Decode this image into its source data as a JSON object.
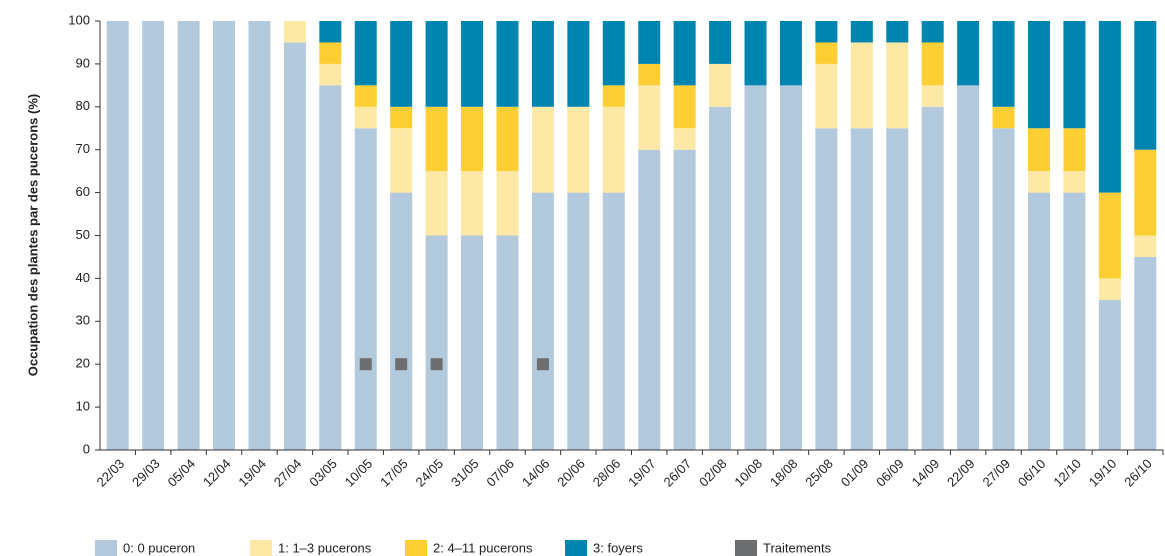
{
  "chart_data": {
    "type": "bar",
    "stacked": true,
    "y_label": "Occupation des plantes par des pucerons (%)",
    "categories": [
      "22/03",
      "29/03",
      "05/04",
      "12/04",
      "19/04",
      "27/04",
      "03/05",
      "10/05",
      "17/05",
      "24/05",
      "31/05",
      "07/06",
      "14/06",
      "20/06",
      "28/06",
      "19/07",
      "26/07",
      "02/08",
      "10/08",
      "18/08",
      "25/08",
      "01/09",
      "06/09",
      "14/09",
      "22/09",
      "27/09",
      "06/10",
      "12/10",
      "19/10",
      "26/10"
    ],
    "series": [
      {
        "name": "0: 0 puceron",
        "color": "#b3c9dc",
        "values": [
          100,
          100,
          100,
          100,
          100,
          95,
          85,
          75,
          60,
          50,
          50,
          50,
          60,
          60,
          60,
          70,
          70,
          80,
          85,
          85,
          75,
          75,
          75,
          80,
          85,
          75,
          60,
          60,
          35,
          45
        ]
      },
      {
        "name": "1: 1–3 pucerons",
        "color": "#fde9a6",
        "values": [
          0,
          0,
          0,
          0,
          0,
          5,
          5,
          5,
          15,
          15,
          15,
          15,
          20,
          20,
          20,
          15,
          5,
          10,
          0,
          0,
          15,
          20,
          20,
          5,
          0,
          0,
          5,
          5,
          5,
          5
        ]
      },
      {
        "name": "2: 4–11 pucerons",
        "color": "#fdcf35",
        "values": [
          0,
          0,
          0,
          0,
          0,
          0,
          5,
          5,
          5,
          15,
          15,
          15,
          0,
          0,
          5,
          5,
          10,
          0,
          0,
          0,
          5,
          0,
          0,
          10,
          0,
          5,
          10,
          10,
          20,
          20
        ]
      },
      {
        "name": "3: foyers",
        "color": "#0085b0",
        "values": [
          0,
          0,
          0,
          0,
          0,
          0,
          5,
          15,
          20,
          20,
          20,
          20,
          20,
          20,
          15,
          10,
          15,
          10,
          15,
          15,
          5,
          5,
          5,
          5,
          15,
          20,
          25,
          25,
          40,
          30
        ]
      }
    ],
    "markers": {
      "name": "Traitements",
      "color": "#6d6e70",
      "values": [
        null,
        null,
        null,
        null,
        null,
        null,
        null,
        20,
        20,
        20,
        null,
        null,
        20,
        null,
        null,
        null,
        null,
        null,
        null,
        null,
        null,
        null,
        null,
        null,
        null,
        null,
        null,
        null,
        null,
        null
      ]
    },
    "ylim": [
      0,
      100
    ],
    "yticks": [
      0,
      10,
      20,
      30,
      40,
      50,
      60,
      70,
      80,
      90,
      100
    ],
    "grid": false
  }
}
